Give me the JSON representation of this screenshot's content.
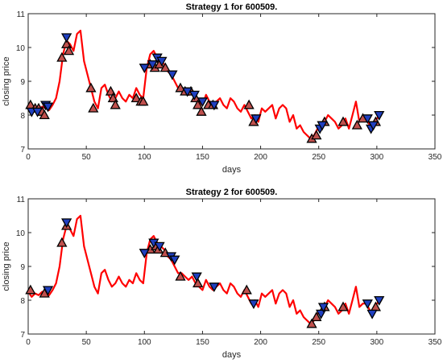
{
  "colors": {
    "line": "#ff0000",
    "buy_marker_fill": "#c0504d",
    "sell_marker_fill": "#1f3fbf",
    "marker_edge": "#000000",
    "axes": "#262626"
  },
  "chart_data": [
    {
      "type": "line",
      "title": "Strategy 1 for 600509.",
      "xlabel": "days",
      "ylabel": "closing price",
      "xlim": [
        0,
        350
      ],
      "ylim": [
        7,
        11
      ],
      "xticks": [
        0,
        50,
        100,
        150,
        200,
        250,
        300,
        350
      ],
      "yticks": [
        7,
        8,
        9,
        10,
        11
      ],
      "grid": false,
      "series": [
        {
          "x": [
            0,
            3,
            6,
            9,
            12,
            15,
            18,
            21,
            24,
            27,
            30,
            33,
            36,
            39,
            42,
            45,
            48,
            51,
            54,
            57,
            60,
            63,
            66,
            69,
            72,
            75,
            78,
            81,
            84,
            87,
            90,
            93,
            96,
            99,
            102,
            105,
            108,
            111,
            114,
            117,
            120,
            123,
            126,
            129,
            132,
            135,
            138,
            141,
            144,
            147,
            150,
            153,
            156,
            159,
            162,
            165,
            168,
            171,
            174,
            177,
            180,
            183,
            186,
            189,
            192,
            195,
            198,
            201,
            204,
            207,
            210,
            213,
            216,
            219,
            222,
            225,
            228,
            231,
            234,
            237,
            240,
            243,
            246,
            249,
            252,
            255,
            258,
            261,
            264,
            267,
            270,
            273,
            276,
            279,
            282,
            285,
            288,
            291,
            294,
            297,
            300,
            303
          ],
          "values": [
            8.25,
            8.1,
            8.2,
            8.15,
            8.25,
            8.2,
            8.15,
            8.3,
            8.5,
            9.0,
            9.8,
            10.2,
            10.1,
            9.9,
            10.4,
            10.5,
            9.6,
            9.2,
            8.8,
            8.4,
            8.2,
            8.8,
            8.9,
            8.6,
            8.4,
            8.5,
            8.7,
            8.5,
            8.4,
            8.6,
            8.5,
            8.8,
            8.6,
            8.5,
            9.4,
            9.8,
            9.9,
            9.7,
            9.6,
            9.5,
            9.3,
            9.2,
            9.0,
            8.8,
            8.8,
            8.7,
            8.6,
            8.7,
            8.5,
            8.4,
            8.3,
            8.6,
            8.4,
            8.3,
            8.4,
            8.5,
            8.3,
            8.2,
            8.5,
            8.4,
            8.2,
            8.1,
            8.3,
            8.1,
            7.9,
            8.0,
            7.8,
            8.2,
            8.1,
            8.2,
            8.3,
            7.9,
            8.2,
            8.3,
            8.2,
            7.8,
            8.0,
            7.6,
            7.7,
            7.5,
            7.4,
            7.3,
            7.4,
            7.6,
            7.7,
            7.8,
            8.0,
            7.9,
            7.8,
            7.6,
            7.7,
            7.9,
            7.6,
            8.0,
            8.4,
            7.8,
            7.9,
            7.9,
            7.7,
            7.6,
            7.9,
            8.0
          ]
        }
      ],
      "buy_markers": [
        {
          "x": 2,
          "y": 8.3
        },
        {
          "x": 6,
          "y": 8.2
        },
        {
          "x": 9,
          "y": 8.2
        },
        {
          "x": 12,
          "y": 8.1
        },
        {
          "x": 14,
          "y": 8.0
        },
        {
          "x": 29,
          "y": 9.7
        },
        {
          "x": 33,
          "y": 10.1
        },
        {
          "x": 35,
          "y": 9.9
        },
        {
          "x": 54,
          "y": 8.8
        },
        {
          "x": 56,
          "y": 8.2
        },
        {
          "x": 71,
          "y": 8.7
        },
        {
          "x": 73,
          "y": 8.5
        },
        {
          "x": 75,
          "y": 8.3
        },
        {
          "x": 93,
          "y": 8.5
        },
        {
          "x": 97,
          "y": 8.4
        },
        {
          "x": 99,
          "y": 8.4
        },
        {
          "x": 105,
          "y": 9.5
        },
        {
          "x": 109,
          "y": 9.4
        },
        {
          "x": 113,
          "y": 9.5
        },
        {
          "x": 118,
          "y": 9.4
        },
        {
          "x": 131,
          "y": 8.8
        },
        {
          "x": 135,
          "y": 8.7
        },
        {
          "x": 140,
          "y": 8.7
        },
        {
          "x": 144,
          "y": 8.5
        },
        {
          "x": 146,
          "y": 8.3
        },
        {
          "x": 149,
          "y": 8.1
        },
        {
          "x": 155,
          "y": 8.3
        },
        {
          "x": 159,
          "y": 8.3
        },
        {
          "x": 190,
          "y": 8.3
        },
        {
          "x": 194,
          "y": 7.8
        },
        {
          "x": 244,
          "y": 7.3
        },
        {
          "x": 248,
          "y": 7.4
        },
        {
          "x": 255,
          "y": 7.8
        },
        {
          "x": 271,
          "y": 7.8
        },
        {
          "x": 283,
          "y": 7.7
        },
        {
          "x": 288,
          "y": 7.9
        },
        {
          "x": 299,
          "y": 7.8
        }
      ],
      "sell_markers": [
        {
          "x": 3,
          "y": 8.1
        },
        {
          "x": 8,
          "y": 8.1
        },
        {
          "x": 15,
          "y": 8.3
        },
        {
          "x": 17,
          "y": 8.25
        },
        {
          "x": 33,
          "y": 10.3
        },
        {
          "x": 100,
          "y": 9.4
        },
        {
          "x": 107,
          "y": 9.5
        },
        {
          "x": 111,
          "y": 9.7
        },
        {
          "x": 115,
          "y": 9.6
        },
        {
          "x": 124,
          "y": 9.2
        },
        {
          "x": 137,
          "y": 8.7
        },
        {
          "x": 143,
          "y": 8.6
        },
        {
          "x": 150,
          "y": 8.4
        },
        {
          "x": 160,
          "y": 8.3
        },
        {
          "x": 196,
          "y": 7.9
        },
        {
          "x": 251,
          "y": 7.6
        },
        {
          "x": 253,
          "y": 7.7
        },
        {
          "x": 292,
          "y": 7.9
        },
        {
          "x": 295,
          "y": 7.6
        },
        {
          "x": 297,
          "y": 7.7
        },
        {
          "x": 302,
          "y": 8.0
        }
      ]
    },
    {
      "type": "line",
      "title": "Strategy 2 for 600509.",
      "xlabel": "days",
      "ylabel": "closing price",
      "xlim": [
        0,
        350
      ],
      "ylim": [
        7,
        11
      ],
      "xticks": [
        0,
        50,
        100,
        150,
        200,
        250,
        300,
        350
      ],
      "yticks": [
        7,
        8,
        9,
        10,
        11
      ],
      "grid": false,
      "series": [
        {
          "x": [
            0,
            3,
            6,
            9,
            12,
            15,
            18,
            21,
            24,
            27,
            30,
            33,
            36,
            39,
            42,
            45,
            48,
            51,
            54,
            57,
            60,
            63,
            66,
            69,
            72,
            75,
            78,
            81,
            84,
            87,
            90,
            93,
            96,
            99,
            102,
            105,
            108,
            111,
            114,
            117,
            120,
            123,
            126,
            129,
            132,
            135,
            138,
            141,
            144,
            147,
            150,
            153,
            156,
            159,
            162,
            165,
            168,
            171,
            174,
            177,
            180,
            183,
            186,
            189,
            192,
            195,
            198,
            201,
            204,
            207,
            210,
            213,
            216,
            219,
            222,
            225,
            228,
            231,
            234,
            237,
            240,
            243,
            246,
            249,
            252,
            255,
            258,
            261,
            264,
            267,
            270,
            273,
            276,
            279,
            282,
            285,
            288,
            291,
            294,
            297,
            300,
            303
          ],
          "values": [
            8.25,
            8.1,
            8.2,
            8.15,
            8.25,
            8.2,
            8.15,
            8.3,
            8.5,
            9.0,
            9.8,
            10.2,
            10.1,
            9.9,
            10.4,
            10.5,
            9.6,
            9.2,
            8.8,
            8.4,
            8.2,
            8.8,
            8.9,
            8.6,
            8.4,
            8.5,
            8.7,
            8.5,
            8.4,
            8.6,
            8.5,
            8.8,
            8.6,
            8.5,
            9.4,
            9.8,
            9.9,
            9.7,
            9.6,
            9.5,
            9.3,
            9.2,
            9.0,
            8.8,
            8.8,
            8.7,
            8.6,
            8.7,
            8.5,
            8.4,
            8.3,
            8.6,
            8.4,
            8.3,
            8.4,
            8.5,
            8.3,
            8.2,
            8.5,
            8.4,
            8.2,
            8.1,
            8.3,
            8.1,
            7.9,
            8.0,
            7.8,
            8.2,
            8.1,
            8.2,
            8.3,
            7.9,
            8.2,
            8.3,
            8.2,
            7.8,
            8.0,
            7.6,
            7.7,
            7.5,
            7.4,
            7.3,
            7.4,
            7.6,
            7.7,
            7.8,
            8.0,
            7.9,
            7.8,
            7.6,
            7.7,
            7.9,
            7.6,
            8.0,
            8.4,
            7.8,
            7.9,
            7.9,
            7.7,
            7.6,
            7.9,
            8.0
          ]
        }
      ],
      "buy_markers": [
        {
          "x": 2,
          "y": 8.3
        },
        {
          "x": 14,
          "y": 8.2
        },
        {
          "x": 29,
          "y": 9.7
        },
        {
          "x": 33,
          "y": 10.2
        },
        {
          "x": 105,
          "y": 9.5
        },
        {
          "x": 110,
          "y": 9.6
        },
        {
          "x": 112,
          "y": 9.5
        },
        {
          "x": 118,
          "y": 9.4
        },
        {
          "x": 131,
          "y": 8.7
        },
        {
          "x": 146,
          "y": 8.5
        },
        {
          "x": 188,
          "y": 8.3
        },
        {
          "x": 244,
          "y": 7.3
        },
        {
          "x": 248,
          "y": 7.5
        },
        {
          "x": 255,
          "y": 7.8
        },
        {
          "x": 271,
          "y": 7.8
        },
        {
          "x": 299,
          "y": 7.8
        }
      ],
      "sell_markers": [
        {
          "x": 17,
          "y": 8.3
        },
        {
          "x": 33,
          "y": 10.3
        },
        {
          "x": 100,
          "y": 9.4
        },
        {
          "x": 108,
          "y": 9.7
        },
        {
          "x": 113,
          "y": 9.6
        },
        {
          "x": 123,
          "y": 9.3
        },
        {
          "x": 126,
          "y": 9.2
        },
        {
          "x": 145,
          "y": 8.7
        },
        {
          "x": 160,
          "y": 8.4
        },
        {
          "x": 194,
          "y": 7.9
        },
        {
          "x": 252,
          "y": 7.6
        },
        {
          "x": 254,
          "y": 7.8
        },
        {
          "x": 292,
          "y": 7.9
        },
        {
          "x": 296,
          "y": 7.6
        },
        {
          "x": 302,
          "y": 8.0
        }
      ]
    }
  ]
}
